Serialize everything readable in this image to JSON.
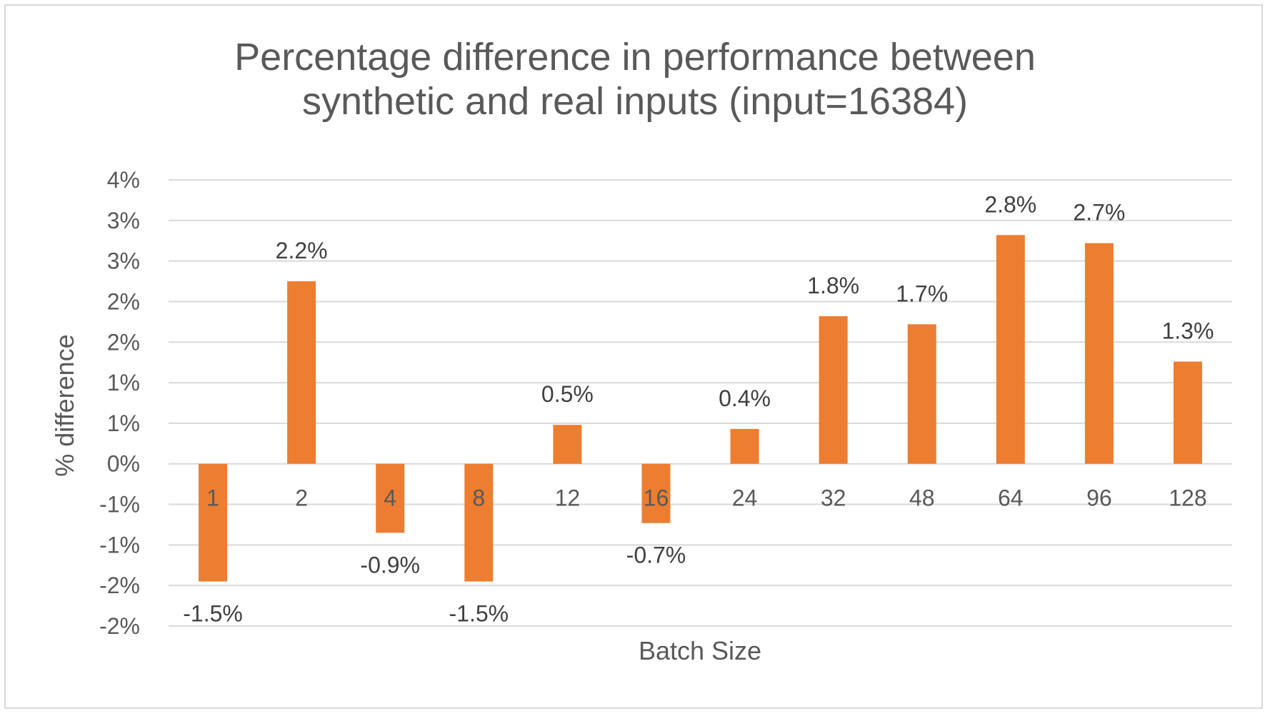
{
  "chart_data": {
    "type": "bar",
    "title_lines": [
      "Percentage difference in performance between",
      "synthetic and real inputs (input=16384)"
    ],
    "xlabel": "Batch Size",
    "ylabel": "% difference",
    "categories": [
      "1",
      "2",
      "4",
      "8",
      "12",
      "16",
      "24",
      "32",
      "48",
      "64",
      "96",
      "128"
    ],
    "values": [
      -1.45,
      2.25,
      -0.85,
      -1.45,
      0.48,
      -0.73,
      0.43,
      1.82,
      1.72,
      2.82,
      2.72,
      1.26
    ],
    "data_labels": [
      "-1.5%",
      "2.2%",
      "-0.9%",
      "-1.5%",
      "0.5%",
      "-0.7%",
      "0.4%",
      "1.8%",
      "1.7%",
      "2.8%",
      "2.7%",
      "1.3%"
    ],
    "ylim": [
      -2,
      3.5
    ],
    "y_tick_labels": [
      "-2%",
      "-2%",
      "-1%",
      "-1%",
      "0%",
      "1%",
      "1%",
      "2%",
      "2%",
      "3%",
      "3%",
      "4%"
    ],
    "colors": {
      "bar": "#ED7D31",
      "grid": "#d9d9d9"
    },
    "grid": true,
    "legend": "none"
  }
}
